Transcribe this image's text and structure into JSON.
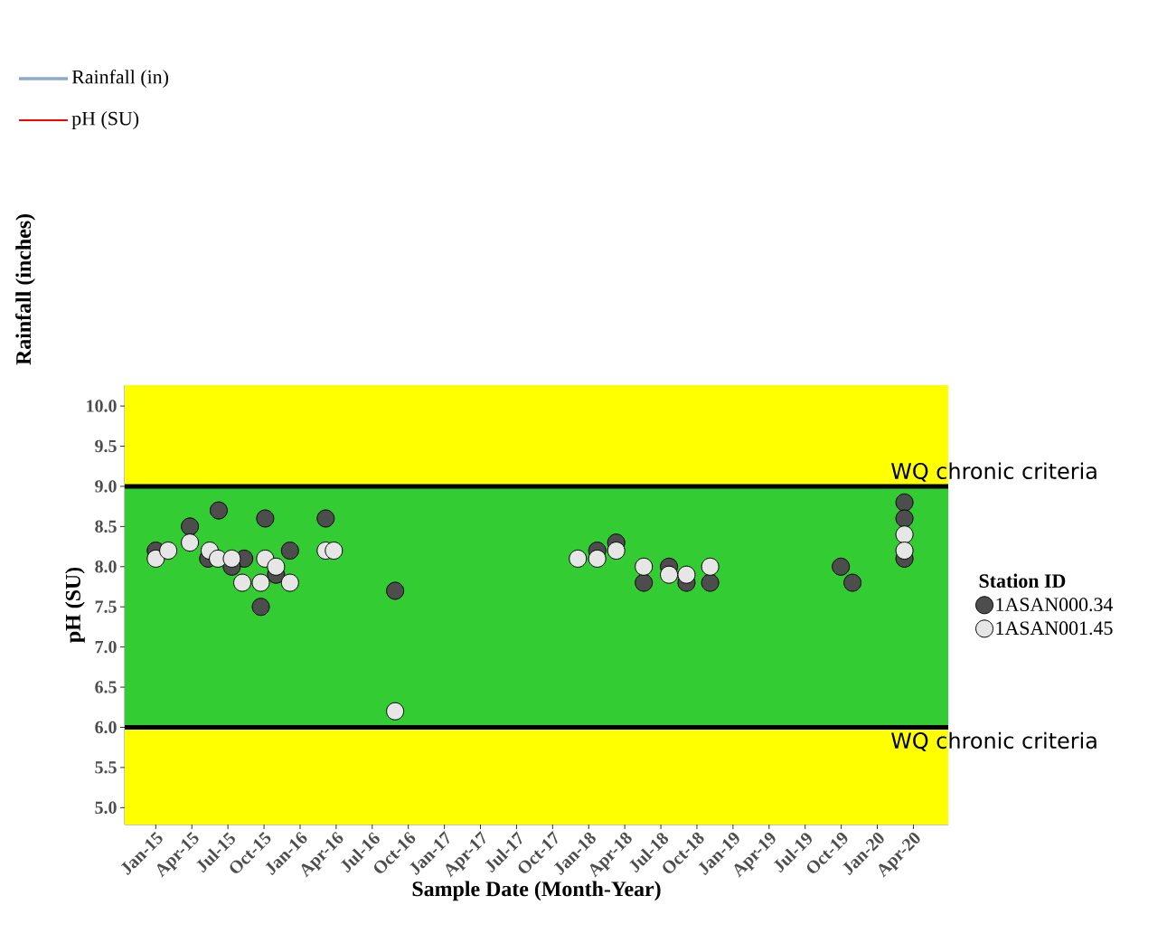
{
  "chart_data": {
    "type": "scatter",
    "xlabel": "Sample Date (Month-Year)",
    "ylabel": "pH (SU)",
    "legend_title": "Station ID",
    "xlim": [
      "2014-10-14",
      "2020-06-28"
    ],
    "ylim": [
      4.79,
      10.26
    ],
    "xticks": [
      {
        "value": "2015-01-01",
        "label": "Jan-15"
      },
      {
        "value": "2015-04-01",
        "label": "Apr-15"
      },
      {
        "value": "2015-07-01",
        "label": "Jul-15"
      },
      {
        "value": "2015-10-01",
        "label": "Oct-15"
      },
      {
        "value": "2016-01-01",
        "label": "Jan-16"
      },
      {
        "value": "2016-04-01",
        "label": "Apr-16"
      },
      {
        "value": "2016-07-01",
        "label": "Jul-16"
      },
      {
        "value": "2016-10-01",
        "label": "Oct-16"
      },
      {
        "value": "2017-01-01",
        "label": "Jan-17"
      },
      {
        "value": "2017-04-01",
        "label": "Apr-17"
      },
      {
        "value": "2017-07-01",
        "label": "Jul-17"
      },
      {
        "value": "2017-10-01",
        "label": "Oct-17"
      },
      {
        "value": "2018-01-01",
        "label": "Jan-18"
      },
      {
        "value": "2018-04-01",
        "label": "Apr-18"
      },
      {
        "value": "2018-07-01",
        "label": "Jul-18"
      },
      {
        "value": "2018-10-01",
        "label": "Oct-18"
      },
      {
        "value": "2019-01-01",
        "label": "Jan-19"
      },
      {
        "value": "2019-04-01",
        "label": "Apr-19"
      },
      {
        "value": "2019-07-01",
        "label": "Jul-19"
      },
      {
        "value": "2019-10-01",
        "label": "Oct-19"
      },
      {
        "value": "2020-01-01",
        "label": "Jan-20"
      },
      {
        "value": "2020-04-01",
        "label": "Apr-20"
      }
    ],
    "yticks": [
      {
        "value": 5,
        "label": "5.0"
      },
      {
        "value": 5.5,
        "label": "5.5"
      },
      {
        "value": 6,
        "label": "6.0"
      },
      {
        "value": 6.5,
        "label": "6.5"
      },
      {
        "value": 7,
        "label": "7.0"
      },
      {
        "value": 7.5,
        "label": "7.5"
      },
      {
        "value": 8,
        "label": "8.0"
      },
      {
        "value": 8.5,
        "label": "8.5"
      },
      {
        "value": 9,
        "label": "9.0"
      },
      {
        "value": 9.5,
        "label": "9.5"
      },
      {
        "value": 10,
        "label": "10.0"
      }
    ],
    "bands": [
      {
        "axis": "y",
        "from": 4.79,
        "to": 6,
        "color": "#ffff00"
      },
      {
        "axis": "y",
        "from": 6,
        "to": 9,
        "color": "#33cc33"
      },
      {
        "axis": "y",
        "from": 9,
        "to": 10.26,
        "color": "#ffff00"
      }
    ],
    "ref_lines": [
      {
        "axis": "y",
        "value": 9,
        "label": "WQ chronic criteria",
        "color": "#000000"
      },
      {
        "axis": "y",
        "value": 6,
        "label": "WQ chronic criteria",
        "color": "#000000"
      }
    ],
    "series": [
      {
        "name": "1ASAN000.34",
        "color": "#4d4d4d",
        "x": [
          "2015-01-01",
          "2015-03-27",
          "2015-06-08",
          "2015-05-12",
          "2015-08-12",
          "2015-07-11",
          "2015-10-04",
          "2015-09-23",
          "2015-11-01",
          "2015-12-06",
          "2016-03-05",
          "2016-08-29",
          "2018-01-23",
          "2018-03-10",
          "2018-05-19",
          "2018-07-22",
          "2018-09-05",
          "2018-11-04",
          "2019-09-30",
          "2019-10-30",
          "2020-03-09",
          "2020-03-09",
          "2020-03-09"
        ],
        "values": [
          8.2,
          8.5,
          8.7,
          8.1,
          8.1,
          8.0,
          8.6,
          7.5,
          7.9,
          8.2,
          8.6,
          7.7,
          8.2,
          8.3,
          7.8,
          8.0,
          7.8,
          7.8,
          8.0,
          7.8,
          8.8,
          8.6,
          8.1
        ]
      },
      {
        "name": "1ASAN001.45",
        "color": "#e6e6e6",
        "x": [
          "2015-01-01",
          "2015-02-02",
          "2015-03-27",
          "2015-05-16",
          "2015-06-06",
          "2015-07-11",
          "2015-08-07",
          "2015-10-04",
          "2015-09-23",
          "2015-11-01",
          "2015-12-06",
          "2016-03-05",
          "2016-03-26",
          "2016-08-29",
          "2017-12-04",
          "2018-01-23",
          "2018-03-10",
          "2018-05-19",
          "2018-07-22",
          "2018-09-05",
          "2018-11-04",
          "2020-03-09",
          "2020-03-09"
        ],
        "values": [
          8.1,
          8.2,
          8.3,
          8.2,
          8.1,
          8.1,
          7.8,
          8.1,
          7.8,
          8.0,
          7.8,
          8.2,
          8.2,
          6.2,
          8.1,
          8.1,
          8.2,
          8.0,
          7.9,
          7.9,
          8.0,
          8.4,
          8.2
        ]
      }
    ],
    "marker": "circle",
    "legend": "right",
    "grid": false,
    "annotations": [
      "Rainfall (inches)",
      "Rainfall (in)",
      "pH (SU)"
    ]
  }
}
